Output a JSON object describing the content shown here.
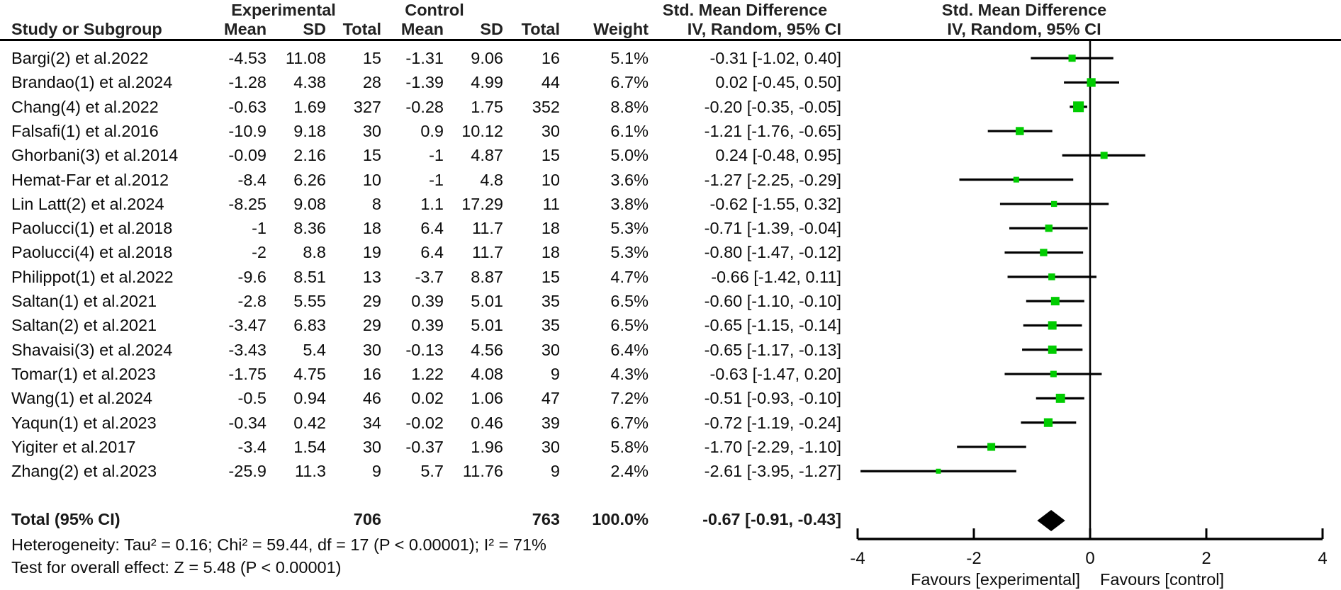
{
  "header": {
    "group_experimental": "Experimental",
    "group_control": "Control",
    "group_smd_left": "Std. Mean Difference",
    "group_smd_right": "Std. Mean Difference",
    "col_study": "Study or Subgroup",
    "col_mean_exp": "Mean",
    "col_sd_exp": "SD",
    "col_total_exp": "Total",
    "col_mean_ctl": "Mean",
    "col_sd_ctl": "SD",
    "col_total_ctl": "Total",
    "col_weight": "Weight",
    "col_iv_left": "IV, Random, 95% CI",
    "col_iv_right": "IV, Random, 95% CI"
  },
  "footnotes": {
    "heterogeneity": "Heterogeneity: Tau² = 0.16; Chi² = 59.44, df = 17 (P < 0.00001); I² = 71%",
    "overall_effect": "Test for overall effect: Z = 5.48 (P < 0.00001)"
  },
  "colors": {
    "marker_green": "#00CC00",
    "line_black": "#000000",
    "diamond_black": "#000000"
  },
  "chart_data": {
    "type": "scatter",
    "variant": "forest-plot-meta-analysis",
    "effect_measure": "Std. Mean Difference",
    "method": "IV, Random, 95% CI",
    "axis": {
      "min": -4,
      "max": 4,
      "ticks": [
        -4,
        -2,
        0,
        2,
        4
      ],
      "favours_left": "Favours [experimental]",
      "favours_right": "Favours [control]"
    },
    "studies": [
      {
        "name": "Bargi(2) et al.2022",
        "exp_mean": -4.53,
        "exp_sd": 11.08,
        "exp_n": 15,
        "ctl_mean": -1.31,
        "ctl_sd": 9.06,
        "ctl_n": 16,
        "weight": "5.1%",
        "est": -0.31,
        "lo": -1.02,
        "hi": 0.4,
        "ci": "-0.31 [-1.02, 0.40]"
      },
      {
        "name": "Brandao(1) et al.2024",
        "exp_mean": -1.28,
        "exp_sd": 4.38,
        "exp_n": 28,
        "ctl_mean": -1.39,
        "ctl_sd": 4.99,
        "ctl_n": 44,
        "weight": "6.7%",
        "est": 0.02,
        "lo": -0.45,
        "hi": 0.5,
        "ci": "0.02 [-0.45, 0.50]"
      },
      {
        "name": "Chang(4) et al.2022",
        "exp_mean": -0.63,
        "exp_sd": 1.69,
        "exp_n": 327,
        "ctl_mean": -0.28,
        "ctl_sd": 1.75,
        "ctl_n": 352,
        "weight": "8.8%",
        "est": -0.2,
        "lo": -0.35,
        "hi": -0.05,
        "ci": "-0.20 [-0.35, -0.05]"
      },
      {
        "name": "Falsafi(1) et al.2016",
        "exp_mean": -10.9,
        "exp_sd": 9.18,
        "exp_n": 30,
        "ctl_mean": 0.9,
        "ctl_sd": 10.12,
        "ctl_n": 30,
        "weight": "6.1%",
        "est": -1.21,
        "lo": -1.76,
        "hi": -0.65,
        "ci": "-1.21 [-1.76, -0.65]"
      },
      {
        "name": "Ghorbani(3) et al.2014",
        "exp_mean": -0.09,
        "exp_sd": 2.16,
        "exp_n": 15,
        "ctl_mean": -1,
        "ctl_sd": 4.87,
        "ctl_n": 15,
        "weight": "5.0%",
        "est": 0.24,
        "lo": -0.48,
        "hi": 0.95,
        "ci": "0.24 [-0.48, 0.95]"
      },
      {
        "name": "Hemat-Far et al.2012",
        "exp_mean": -8.4,
        "exp_sd": 6.26,
        "exp_n": 10,
        "ctl_mean": -1,
        "ctl_sd": 4.8,
        "ctl_n": 10,
        "weight": "3.6%",
        "est": -1.27,
        "lo": -2.25,
        "hi": -0.29,
        "ci": "-1.27 [-2.25, -0.29]"
      },
      {
        "name": "Lin Latt(2) et al.2024",
        "exp_mean": -8.25,
        "exp_sd": 9.08,
        "exp_n": 8,
        "ctl_mean": 1.1,
        "ctl_sd": 17.29,
        "ctl_n": 11,
        "weight": "3.8%",
        "est": -0.62,
        "lo": -1.55,
        "hi": 0.32,
        "ci": "-0.62 [-1.55, 0.32]"
      },
      {
        "name": "Paolucci(1) et al.2018",
        "exp_mean": -1,
        "exp_sd": 8.36,
        "exp_n": 18,
        "ctl_mean": 6.4,
        "ctl_sd": 11.7,
        "ctl_n": 18,
        "weight": "5.3%",
        "est": -0.71,
        "lo": -1.39,
        "hi": -0.04,
        "ci": "-0.71 [-1.39, -0.04]"
      },
      {
        "name": "Paolucci(4) et al.2018",
        "exp_mean": -2,
        "exp_sd": 8.8,
        "exp_n": 19,
        "ctl_mean": 6.4,
        "ctl_sd": 11.7,
        "ctl_n": 18,
        "weight": "5.3%",
        "est": -0.8,
        "lo": -1.47,
        "hi": -0.12,
        "ci": "-0.80 [-1.47, -0.12]"
      },
      {
        "name": "Philippot(1) et al.2022",
        "exp_mean": -9.6,
        "exp_sd": 8.51,
        "exp_n": 13,
        "ctl_mean": -3.7,
        "ctl_sd": 8.87,
        "ctl_n": 15,
        "weight": "4.7%",
        "est": -0.66,
        "lo": -1.42,
        "hi": 0.11,
        "ci": "-0.66 [-1.42, 0.11]"
      },
      {
        "name": "Saltan(1) et al.2021",
        "exp_mean": -2.8,
        "exp_sd": 5.55,
        "exp_n": 29,
        "ctl_mean": 0.39,
        "ctl_sd": 5.01,
        "ctl_n": 35,
        "weight": "6.5%",
        "est": -0.6,
        "lo": -1.1,
        "hi": -0.1,
        "ci": "-0.60 [-1.10, -0.10]"
      },
      {
        "name": "Saltan(2) et al.2021",
        "exp_mean": -3.47,
        "exp_sd": 6.83,
        "exp_n": 29,
        "ctl_mean": 0.39,
        "ctl_sd": 5.01,
        "ctl_n": 35,
        "weight": "6.5%",
        "est": -0.65,
        "lo": -1.15,
        "hi": -0.14,
        "ci": "-0.65 [-1.15, -0.14]"
      },
      {
        "name": "Shavaisi(3) et al.2024",
        "exp_mean": -3.43,
        "exp_sd": 5.4,
        "exp_n": 30,
        "ctl_mean": -0.13,
        "ctl_sd": 4.56,
        "ctl_n": 30,
        "weight": "6.4%",
        "est": -0.65,
        "lo": -1.17,
        "hi": -0.13,
        "ci": "-0.65 [-1.17, -0.13]"
      },
      {
        "name": "Tomar(1) et al.2023",
        "exp_mean": -1.75,
        "exp_sd": 4.75,
        "exp_n": 16,
        "ctl_mean": 1.22,
        "ctl_sd": 4.08,
        "ctl_n": 9,
        "weight": "4.3%",
        "est": -0.63,
        "lo": -1.47,
        "hi": 0.2,
        "ci": "-0.63 [-1.47, 0.20]"
      },
      {
        "name": "Wang(1) et al.2024",
        "exp_mean": -0.5,
        "exp_sd": 0.94,
        "exp_n": 46,
        "ctl_mean": 0.02,
        "ctl_sd": 1.06,
        "ctl_n": 47,
        "weight": "7.2%",
        "est": -0.51,
        "lo": -0.93,
        "hi": -0.1,
        "ci": "-0.51 [-0.93, -0.10]"
      },
      {
        "name": "Yaqun(1) et al.2023",
        "exp_mean": -0.34,
        "exp_sd": 0.42,
        "exp_n": 34,
        "ctl_mean": -0.02,
        "ctl_sd": 0.46,
        "ctl_n": 39,
        "weight": "6.7%",
        "est": -0.72,
        "lo": -1.19,
        "hi": -0.24,
        "ci": "-0.72 [-1.19, -0.24]"
      },
      {
        "name": "Yigiter et al.2017",
        "exp_mean": -3.4,
        "exp_sd": 1.54,
        "exp_n": 30,
        "ctl_mean": -0.37,
        "ctl_sd": 1.96,
        "ctl_n": 30,
        "weight": "5.8%",
        "est": -1.7,
        "lo": -2.29,
        "hi": -1.1,
        "ci": "-1.70 [-2.29, -1.10]"
      },
      {
        "name": "Zhang(2) et al.2023",
        "exp_mean": -25.9,
        "exp_sd": 11.3,
        "exp_n": 9,
        "ctl_mean": 5.7,
        "ctl_sd": 11.76,
        "ctl_n": 9,
        "weight": "2.4%",
        "est": -2.61,
        "lo": -3.95,
        "hi": -1.27,
        "ci": "-2.61 [-3.95, -1.27]"
      }
    ],
    "total": {
      "label": "Total (95% CI)",
      "exp_n": 706,
      "ctl_n": 763,
      "weight": "100.0%",
      "est": -0.67,
      "lo": -0.91,
      "hi": -0.43,
      "ci": "-0.67 [-0.91, -0.43]"
    }
  }
}
